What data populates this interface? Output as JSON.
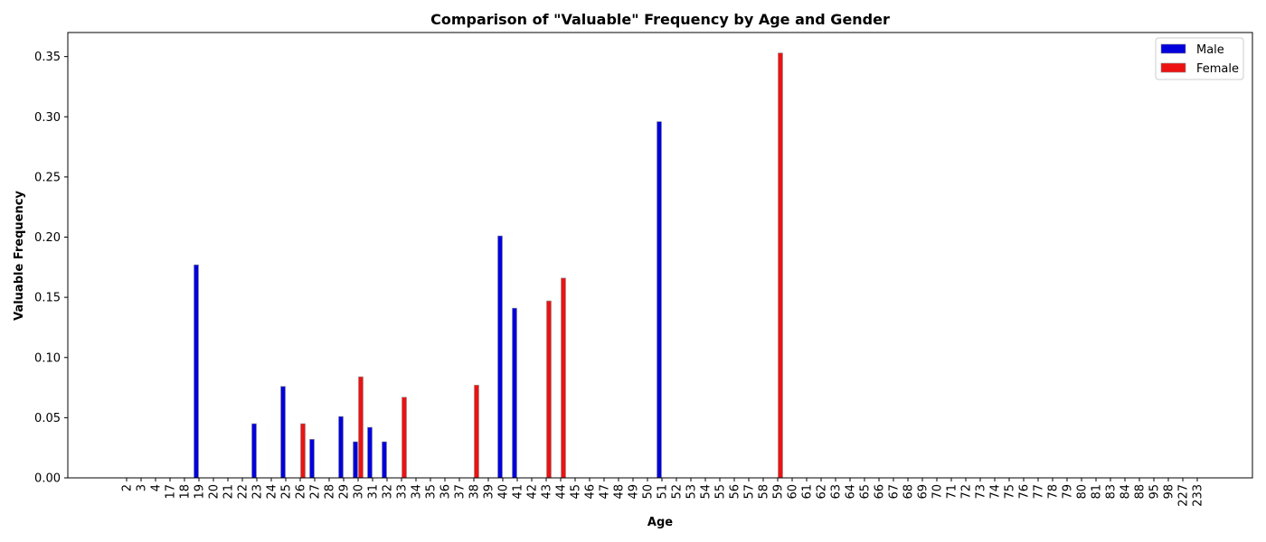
{
  "chart_data": {
    "type": "bar",
    "title": "Comparison of \"Valuable\" Frequency by Age and Gender",
    "xlabel": "Age",
    "ylabel": "Valuable Frequency",
    "categories": [
      "2",
      "3",
      "4",
      "17",
      "18",
      "19",
      "20",
      "21",
      "22",
      "23",
      "24",
      "25",
      "26",
      "27",
      "28",
      "29",
      "30",
      "31",
      "32",
      "33",
      "34",
      "35",
      "36",
      "37",
      "38",
      "39",
      "40",
      "41",
      "42",
      "43",
      "44",
      "45",
      "46",
      "47",
      "48",
      "49",
      "50",
      "51",
      "52",
      "53",
      "54",
      "55",
      "56",
      "57",
      "58",
      "59",
      "60",
      "61",
      "62",
      "63",
      "64",
      "65",
      "66",
      "67",
      "68",
      "69",
      "70",
      "71",
      "72",
      "73",
      "74",
      "75",
      "76",
      "77",
      "78",
      "79",
      "80",
      "81",
      "83",
      "84",
      "88",
      "95",
      "98",
      "227",
      "233"
    ],
    "series": [
      {
        "name": "Male",
        "color": "#0000dd",
        "values": [
          0,
          0,
          0,
          0,
          0,
          0.177,
          0,
          0,
          0,
          0.045,
          0,
          0.076,
          0,
          0.032,
          0,
          0.051,
          0.03,
          0.042,
          0.03,
          0,
          0,
          0,
          0,
          0,
          0,
          0,
          0.201,
          0.141,
          0,
          0,
          0,
          0,
          0,
          0,
          0,
          0,
          0,
          0.296,
          0,
          0,
          0,
          0,
          0,
          0,
          0,
          0,
          0,
          0,
          0,
          0,
          0,
          0,
          0,
          0,
          0,
          0,
          0,
          0,
          0,
          0,
          0,
          0,
          0,
          0,
          0,
          0,
          0,
          0,
          0,
          0,
          0,
          0,
          0,
          0,
          0
        ]
      },
      {
        "name": "Female",
        "color": "#ee1111",
        "values": [
          0,
          0,
          0,
          0,
          0,
          0,
          0,
          0,
          0,
          0,
          0,
          0,
          0.045,
          0,
          0,
          0,
          0.084,
          0,
          0,
          0.067,
          0,
          0,
          0,
          0,
          0.077,
          0,
          0,
          0,
          0,
          0.147,
          0.166,
          0,
          0,
          0,
          0,
          0,
          0,
          0,
          0,
          0,
          0,
          0,
          0,
          0,
          0,
          0.353,
          0,
          0,
          0,
          0,
          0,
          0,
          0,
          0,
          0,
          0,
          0,
          0,
          0,
          0,
          0,
          0,
          0,
          0,
          0,
          0,
          0,
          0,
          0,
          0,
          0,
          0,
          0,
          0,
          0
        ]
      }
    ],
    "ylim": [
      0,
      0.37
    ],
    "yticks": [
      0.0,
      0.05,
      0.1,
      0.15,
      0.2,
      0.25,
      0.3,
      0.35
    ],
    "ytick_labels": [
      "0.00",
      "0.05",
      "0.10",
      "0.15",
      "0.20",
      "0.25",
      "0.30",
      "0.35"
    ],
    "grid": false,
    "legend_position": "top-right"
  }
}
